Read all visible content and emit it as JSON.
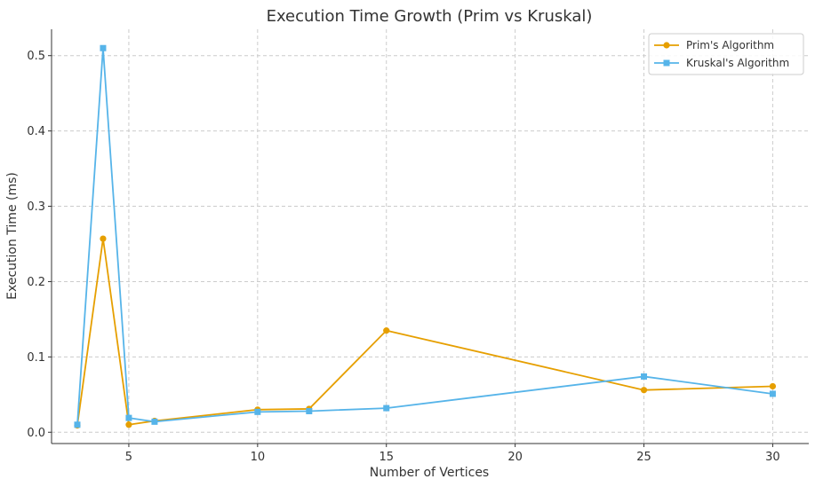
{
  "chart_data": {
    "type": "line",
    "title": "Execution Time Growth (Prim vs Kruskal)",
    "xlabel": "Number of Vertices",
    "ylabel": "Execution Time (ms)",
    "xlim": [
      2,
      31.4
    ],
    "ylim": [
      -0.015,
      0.535
    ],
    "xticks": [
      5,
      10,
      15,
      20,
      25,
      30
    ],
    "yticks": [
      0.0,
      0.1,
      0.2,
      0.3,
      0.4,
      0.5
    ],
    "xtick_labels": [
      "5",
      "10",
      "15",
      "20",
      "25",
      "30"
    ],
    "ytick_labels": [
      "0.0",
      "0.1",
      "0.2",
      "0.3",
      "0.4",
      "0.5"
    ],
    "grid": true,
    "legend_position": "top-right",
    "series": [
      {
        "name": "Prim's Algorithm",
        "color": "#E69F00",
        "marker": "circle",
        "x": [
          3,
          4,
          5,
          6,
          10,
          12,
          15,
          25,
          30
        ],
        "y": [
          0.009,
          0.257,
          0.01,
          0.015,
          0.03,
          0.031,
          0.135,
          0.056,
          0.061
        ]
      },
      {
        "name": "Kruskal's Algorithm",
        "color": "#56B4E9",
        "marker": "square",
        "x": [
          3,
          4,
          5,
          6,
          10,
          12,
          15,
          25,
          30
        ],
        "y": [
          0.01,
          0.51,
          0.019,
          0.014,
          0.027,
          0.028,
          0.032,
          0.074,
          0.051
        ]
      }
    ]
  }
}
